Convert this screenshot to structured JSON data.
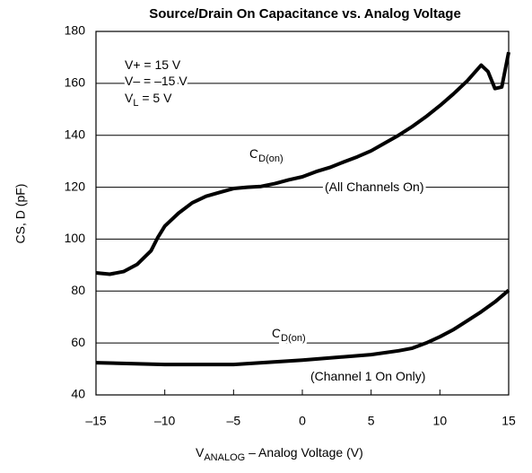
{
  "chart_data": {
    "type": "line",
    "title": "Source/Drain On Capacitance vs. Analog Voltage",
    "xlabel": {
      "main": "V",
      "sub": "ANALOG",
      "rest": " – Analog Voltage (V)"
    },
    "ylabel": "CS, D (pF)",
    "xlim": [
      -15,
      15
    ],
    "xticks": [
      {
        "value": -15,
        "label": "–15"
      },
      {
        "value": -10,
        "label": "–10"
      },
      {
        "value": -5,
        "label": "–5"
      },
      0,
      5,
      10,
      15
    ],
    "ylim": [
      40,
      180
    ],
    "yticks": [
      40,
      60,
      80,
      100,
      120,
      140,
      160,
      180
    ],
    "grid": true,
    "annotations": [
      {
        "main": "V+ = 15 V"
      },
      {
        "main": "V– = –15 V"
      },
      {
        "main": "V",
        "sub": "L",
        "rest": " = 5 V"
      },
      {
        "main": "C",
        "sub": "D(on)"
      },
      {
        "main": "(All Channels On)"
      },
      {
        "main": "C",
        "sub": "D(on)"
      },
      {
        "main": "(Channel 1 On Only)"
      }
    ],
    "series": [
      {
        "name": "All Channels On",
        "color": "#000000",
        "x": [
          -15,
          -14,
          -13,
          -12,
          -11,
          -10.5,
          -10,
          -9,
          -8,
          -7,
          -6,
          -5,
          -4,
          -3,
          -2,
          -1,
          0,
          1,
          2,
          3,
          4,
          5,
          6,
          7,
          8,
          9,
          10,
          11,
          12,
          13,
          13.5,
          14,
          14.5,
          15
        ],
        "values": [
          87,
          86.5,
          87.5,
          90.3,
          95.5,
          100.7,
          105,
          110,
          114,
          116.5,
          118,
          119.5,
          120,
          120.3,
          121.4,
          122.8,
          124,
          126,
          127.6,
          129.7,
          131.7,
          134,
          137,
          140,
          143.4,
          147.2,
          151.4,
          156,
          161,
          167,
          164.5,
          158,
          158.6,
          172
        ]
      },
      {
        "name": "Channel 1 On Only",
        "color": "#000000",
        "x": [
          -15,
          -10,
          -5,
          0,
          5,
          7,
          8,
          9,
          10,
          11,
          12,
          13,
          14,
          15
        ],
        "values": [
          52.4,
          51.7,
          51.7,
          53.4,
          55.5,
          57,
          58,
          60,
          62.4,
          65.2,
          68.6,
          72,
          75.8,
          80.3
        ]
      }
    ]
  }
}
